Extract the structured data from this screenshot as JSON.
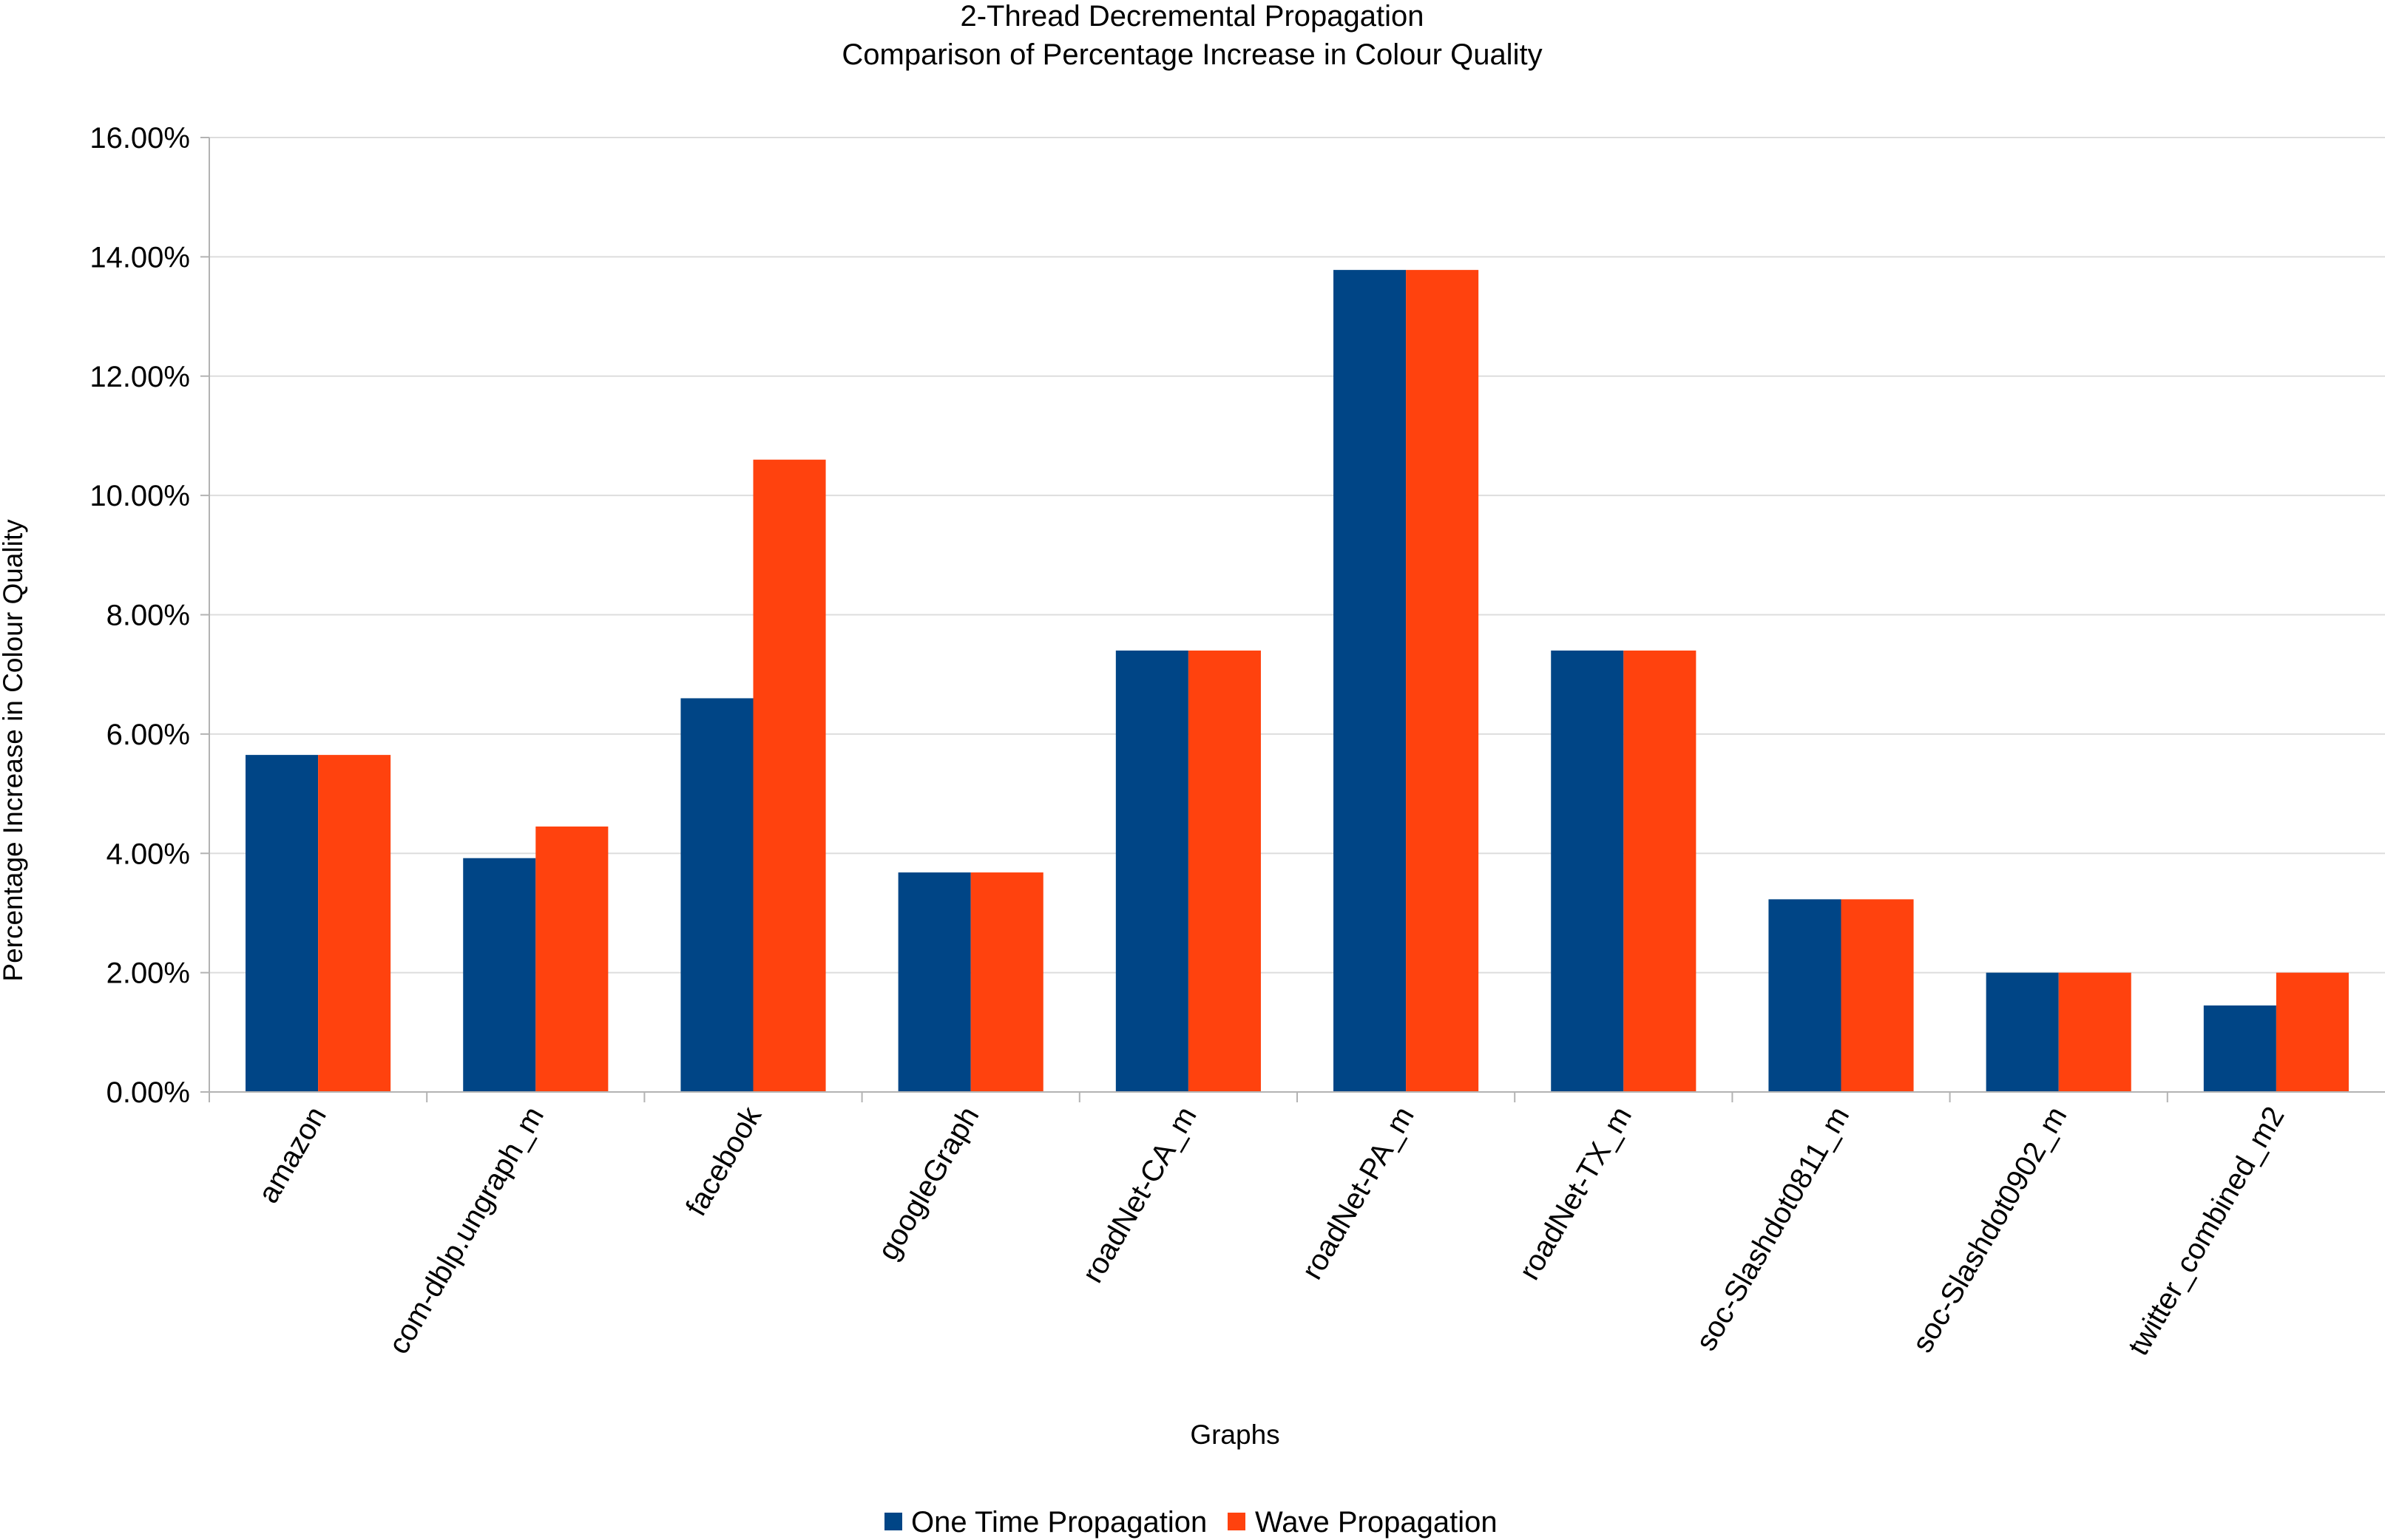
{
  "chart_data": {
    "type": "bar",
    "title": "2-Thread Decremental Propagation",
    "subtitle": "Comparison of Percentage Increase in Colour Quality",
    "xlabel": "Graphs",
    "ylabel": "Percentage Increase in Colour Quality",
    "ylim": [
      0,
      16
    ],
    "yticks": [
      0,
      2,
      4,
      6,
      8,
      10,
      12,
      14,
      16
    ],
    "y_tick_labels": [
      "0.00%",
      "2.00%",
      "4.00%",
      "6.00%",
      "8.00%",
      "10.00%",
      "12.00%",
      "14.00%",
      "16.00%"
    ],
    "categories": [
      "amazon",
      "com-dblp.ungraph_m",
      "facebook",
      "googleGraph",
      "roadNet-CA_m",
      "roadNet-PA_m",
      "roadNet-TX_m",
      "soc-Slashdot0811_m",
      "soc-Slashdot0902_m",
      "twitter_combined_m2"
    ],
    "series": [
      {
        "name": "One Time Propagation",
        "color": "#004586",
        "values": [
          5.65,
          3.92,
          6.6,
          3.68,
          7.4,
          13.78,
          7.4,
          3.23,
          2.0,
          1.45
        ]
      },
      {
        "name": "Wave Propagation",
        "color": "#ff420e",
        "values": [
          5.65,
          4.45,
          10.6,
          3.68,
          7.4,
          13.78,
          7.4,
          3.23,
          2.0,
          2.0
        ]
      }
    ],
    "grid": true,
    "legend_position": "bottom"
  }
}
